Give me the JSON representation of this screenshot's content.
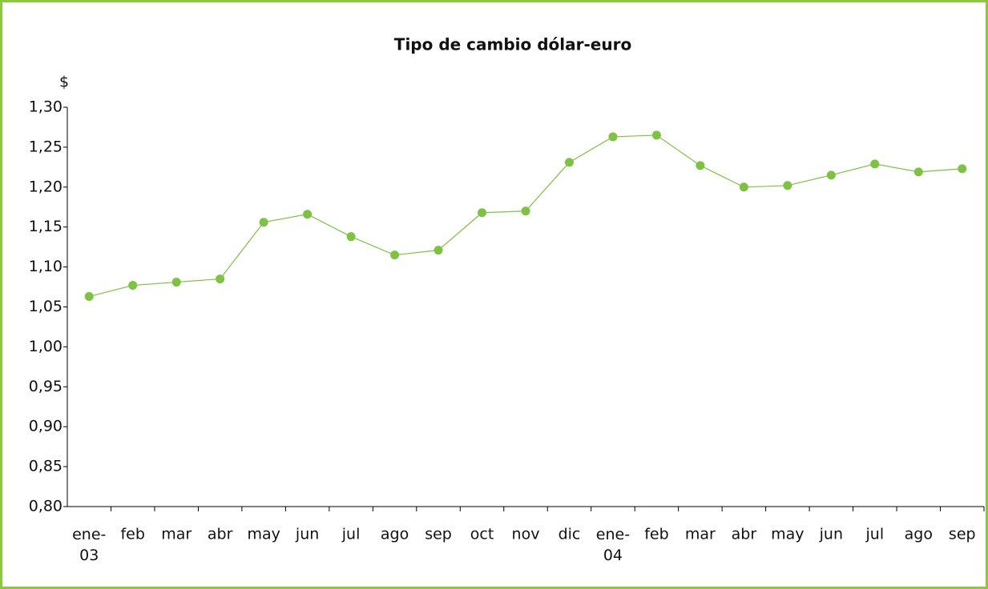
{
  "chart_data": {
    "type": "line",
    "title": "Tipo de cambio dólar-euro",
    "y_label": "$",
    "categories": [
      "ene-03",
      "feb",
      "mar",
      "abr",
      "may",
      "jun",
      "jul",
      "ago",
      "sep",
      "oct",
      "nov",
      "dic",
      "ene-04",
      "feb",
      "mar",
      "abr",
      "may",
      "jun",
      "jul",
      "ago",
      "sep"
    ],
    "series": [
      {
        "name": "Tipo de cambio",
        "color": "#7dc242",
        "values": [
          1.063,
          1.077,
          1.081,
          1.085,
          1.156,
          1.166,
          1.138,
          1.115,
          1.121,
          1.168,
          1.17,
          1.231,
          1.263,
          1.265,
          1.227,
          1.2,
          1.202,
          1.215,
          1.229,
          1.219,
          1.223
        ]
      }
    ],
    "ylim": [
      0.8,
      1.3
    ],
    "yticks": [
      {
        "value": 0.8,
        "label": "0,80"
      },
      {
        "value": 0.85,
        "label": "0,85"
      },
      {
        "value": 0.9,
        "label": "0,90"
      },
      {
        "value": 0.95,
        "label": "0,95"
      },
      {
        "value": 1.0,
        "label": "1,00"
      },
      {
        "value": 1.05,
        "label": "1,05"
      },
      {
        "value": 1.1,
        "label": "1,10"
      },
      {
        "value": 1.15,
        "label": "1,15"
      },
      {
        "value": 1.2,
        "label": "1,20"
      },
      {
        "value": 1.25,
        "label": "1,25"
      },
      {
        "value": 1.3,
        "label": "1,30"
      }
    ],
    "grid": false
  }
}
